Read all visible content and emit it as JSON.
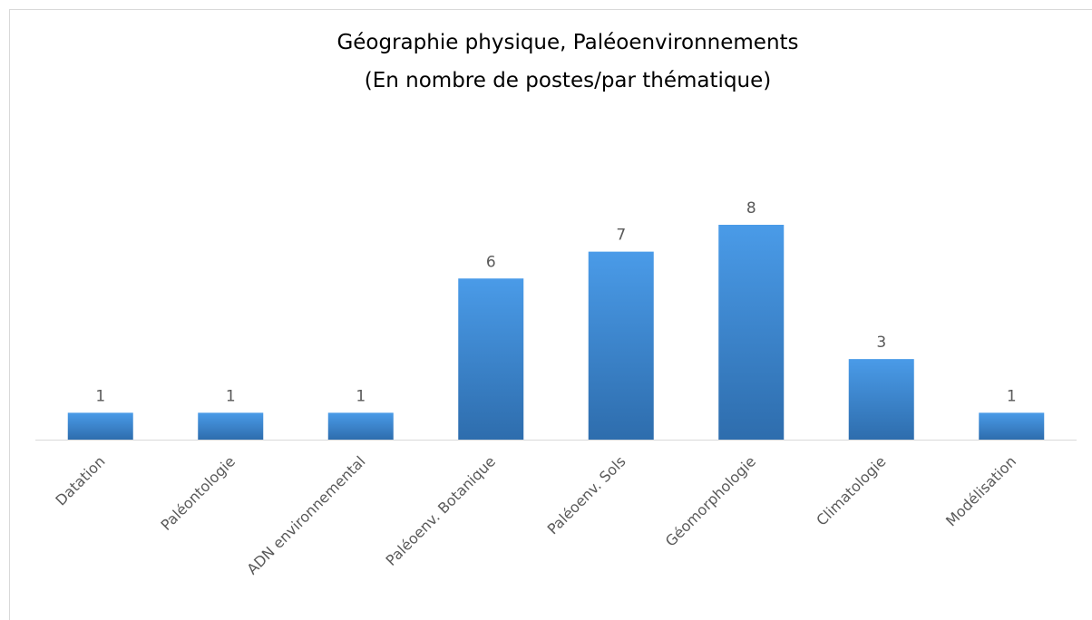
{
  "chart_data": {
    "type": "bar",
    "title": "Géographie physique, Paléoenvironnements",
    "subtitle": "(En nombre de postes/par thématique)",
    "categories": [
      "Datation",
      "Paléontologie",
      "ADN environnemental",
      "Paléoenv. Botanique",
      "Paléoenv. Sols",
      "Géomorphologie",
      "Climatologie",
      "Modélisation"
    ],
    "values": [
      1,
      1,
      1,
      6,
      7,
      8,
      3,
      1
    ],
    "color": "#4a9be8"
  }
}
